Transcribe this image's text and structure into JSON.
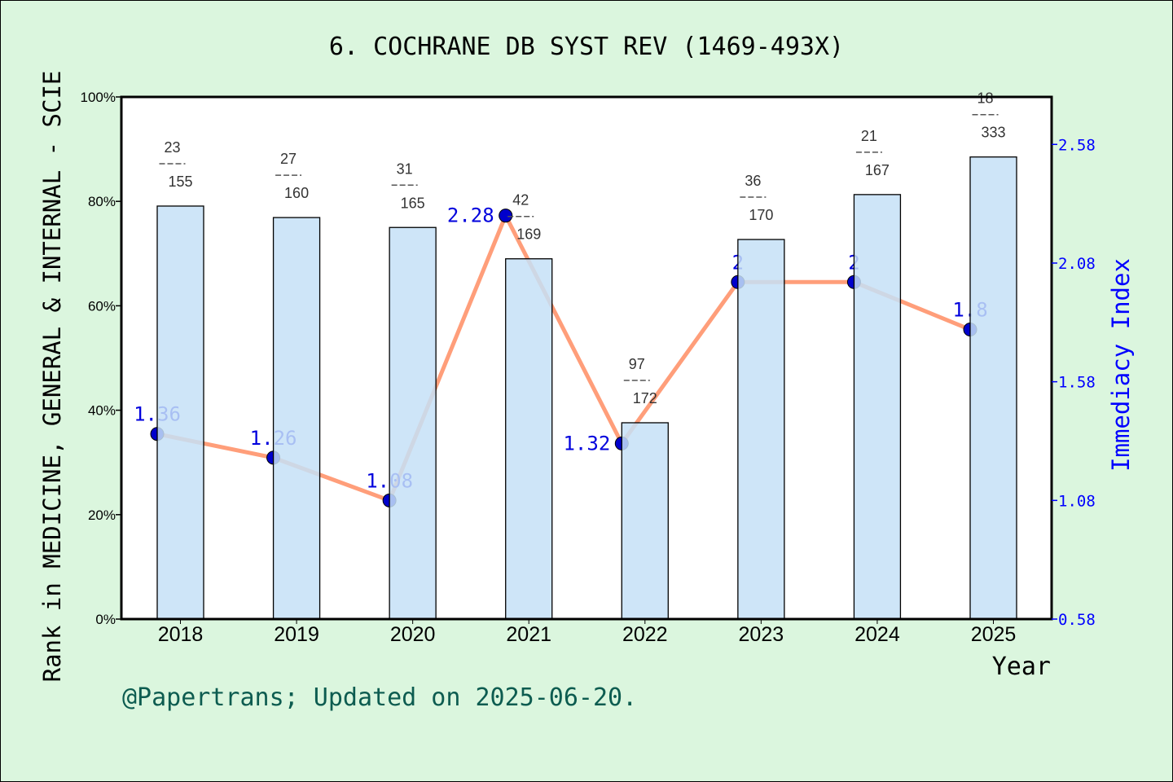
{
  "chart_data": {
    "type": "bar+line",
    "title": "6. COCHRANE DB SYST REV (1469-493X)",
    "xlabel": "Year",
    "ylabel_left": "Rank in MEDICINE, GENERAL & INTERNAL - SCIE",
    "ylabel_right": "Immediacy Index",
    "categories": [
      "2018",
      "2019",
      "2020",
      "2021",
      "2022",
      "2023",
      "2024",
      "2025"
    ],
    "left_axis": {
      "ylim": [
        0,
        100
      ],
      "ticks": [
        "0%",
        "20%",
        "40%",
        "60%",
        "80%",
        "100%"
      ]
    },
    "right_axis": {
      "ylim": [
        0.58,
        2.78
      ],
      "ticks": [
        "0.58",
        "1.08",
        "1.58",
        "2.08",
        "2.58"
      ]
    },
    "bars": {
      "values": [
        79.1,
        76.9,
        75.0,
        69.0,
        37.6,
        72.7,
        81.3,
        88.5
      ],
      "rank": [
        "23",
        "27",
        "31",
        "42",
        "97",
        "36",
        "21",
        "18"
      ],
      "total": [
        "155",
        "160",
        "165",
        "169",
        "172",
        "170",
        "167",
        "333"
      ],
      "color": "#c5e0f7"
    },
    "line": {
      "values": [
        1.36,
        1.26,
        1.08,
        2.28,
        1.32,
        2,
        2,
        1.8
      ],
      "labels": [
        "1.36",
        "1.26",
        "1.08",
        "2.28",
        "1.32",
        "2",
        "2",
        "1.8"
      ],
      "color": "#ff9e7a",
      "marker_color": "#0000cc"
    },
    "footer": "@Papertrans; Updated on 2025-06-20.",
    "grid": false
  }
}
